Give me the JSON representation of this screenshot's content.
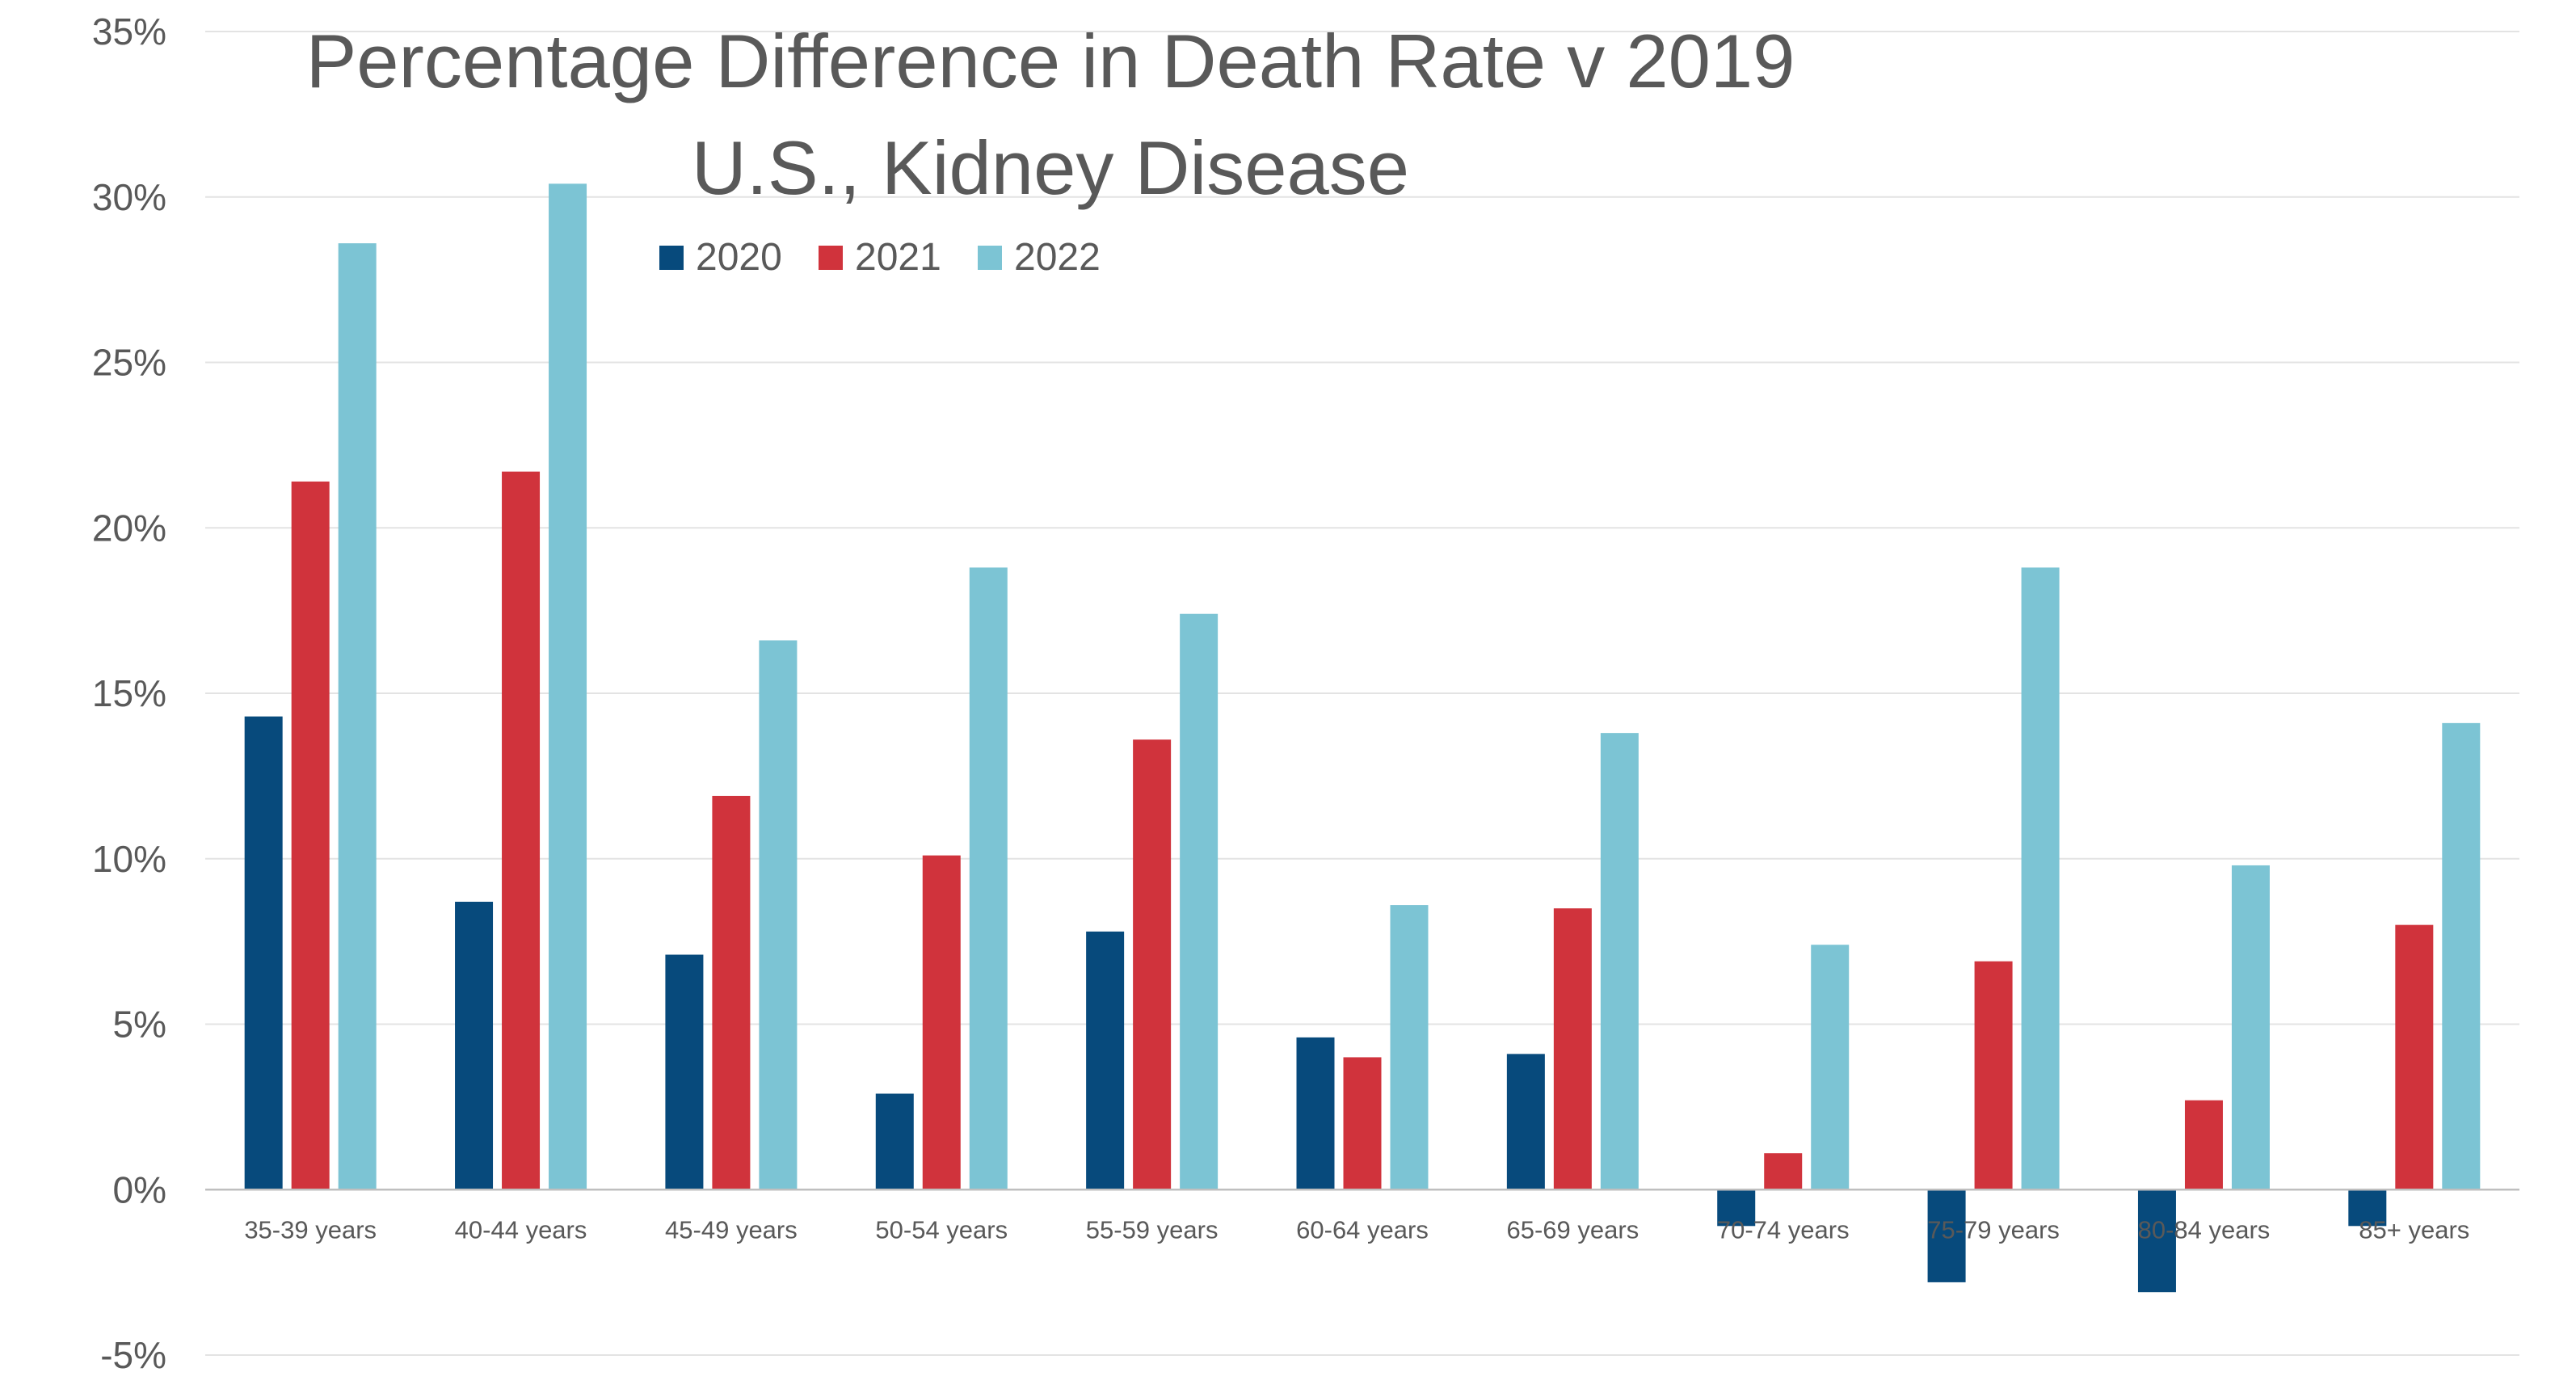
{
  "chart_data": {
    "type": "bar",
    "title": "Percentage Difference in Death Rate v 2019",
    "subtitle": "U.S., Kidney Disease",
    "xlabel": "",
    "ylabel": "",
    "ylim": [
      -5,
      35
    ],
    "y_ticks": [
      "35%",
      "30%",
      "25%",
      "20%",
      "15%",
      "10%",
      "5%",
      "0%",
      "-5%"
    ],
    "grid": true,
    "legend_position": "top",
    "categories": [
      "35-39 years",
      "40-44 years",
      "45-49 years",
      "50-54 years",
      "55-59 years",
      "60-64 years",
      "65-69 years",
      "70-74 years",
      "75-79 years",
      "80-84 years",
      "85+ years"
    ],
    "series": [
      {
        "name": "2020",
        "color": "#074a7c",
        "values": [
          14.3,
          8.7,
          7.1,
          2.9,
          7.8,
          4.6,
          4.1,
          -1.1,
          -2.8,
          -3.1,
          -1.1
        ]
      },
      {
        "name": "2021",
        "color": "#d0333c",
        "values": [
          21.4,
          21.7,
          11.9,
          10.1,
          13.6,
          4.0,
          8.5,
          1.1,
          6.9,
          2.7,
          8.0
        ]
      },
      {
        "name": "2022",
        "color": "#7cc4d4",
        "values": [
          28.6,
          30.4,
          16.6,
          18.8,
          17.4,
          8.6,
          13.8,
          7.4,
          18.8,
          9.8,
          14.1
        ]
      }
    ]
  }
}
